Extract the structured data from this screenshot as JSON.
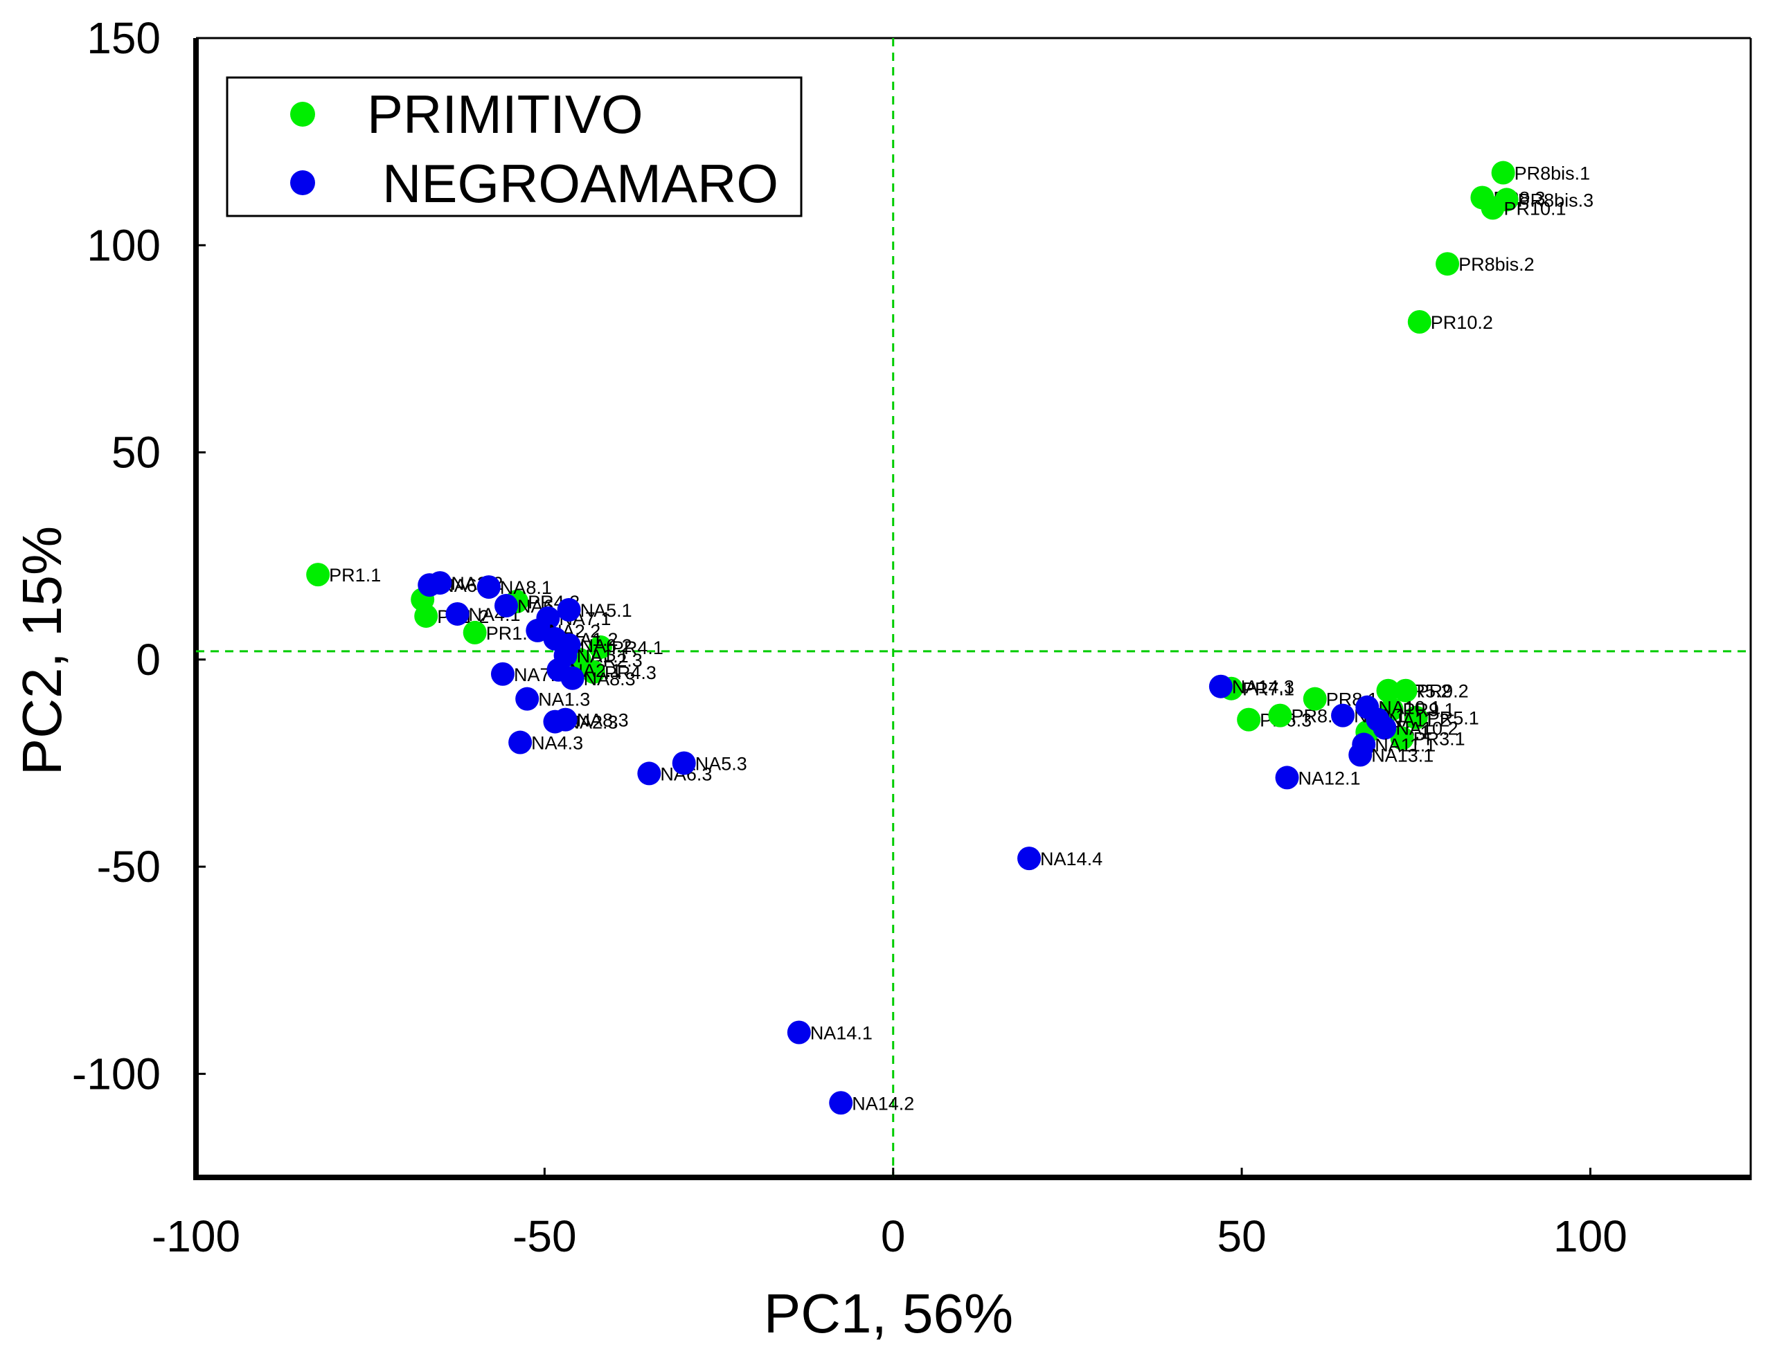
{
  "chart_data": {
    "type": "scatter",
    "title": "",
    "xlabel": "PC1, 56%",
    "ylabel": "PC2, 15%",
    "xlim": [
      -100,
      123
    ],
    "ylim": [
      -125,
      150
    ],
    "xticks": [
      -100,
      -50,
      0,
      50,
      100
    ],
    "yticks": [
      -100,
      -50,
      0,
      50,
      100,
      150
    ],
    "reference_lines": {
      "x": 0,
      "y": 2,
      "color": "#00cc00",
      "style": "dashed"
    },
    "grid": false,
    "legend_position": "top-left",
    "series": [
      {
        "name": "PRIMITIVO",
        "color": "#00ee00",
        "points": [
          {
            "x": -82.5,
            "y": 20.5,
            "label": "PR1.1"
          },
          {
            "x": -67.5,
            "y": 14.5,
            "label": ""
          },
          {
            "x": -67,
            "y": 10.5,
            "label": "PR1.2"
          },
          {
            "x": -60,
            "y": 6.5,
            "label": "PR1.3"
          },
          {
            "x": -54,
            "y": 14,
            "label": "PR4.2"
          },
          {
            "x": -45,
            "y": 0,
            "label": "PR2.3"
          },
          {
            "x": -43,
            "y": -3,
            "label": "PR4.3"
          },
          {
            "x": -42,
            "y": 3,
            "label": "PR4.1"
          },
          {
            "x": 87.5,
            "y": 117.5,
            "label": "PR8bis.1"
          },
          {
            "x": 84.5,
            "y": 111.5,
            "label": "PR8.3"
          },
          {
            "x": 88,
            "y": 111,
            "label": "PR8bis.3"
          },
          {
            "x": 86,
            "y": 109,
            "label": "PR10.1"
          },
          {
            "x": 79.5,
            "y": 95.5,
            "label": "PR8bis.2"
          },
          {
            "x": 75.5,
            "y": 81.5,
            "label": "PR10.2"
          },
          {
            "x": 48.5,
            "y": -7,
            "label": "PR7.1"
          },
          {
            "x": 51,
            "y": -14.5,
            "label": "PR6.3"
          },
          {
            "x": 55.5,
            "y": -13.5,
            "label": "PR8.2"
          },
          {
            "x": 60.5,
            "y": -9.5,
            "label": "PR8.1"
          },
          {
            "x": 71,
            "y": -7.5,
            "label": "PR5.2"
          },
          {
            "x": 73.5,
            "y": -7.5,
            "label": "PR9.2"
          },
          {
            "x": 68,
            "y": -17.5,
            "label": "PR6.1"
          },
          {
            "x": 73,
            "y": -19,
            "label": "PR3.1"
          },
          {
            "x": 75,
            "y": -14,
            "label": "PR5.1"
          },
          {
            "x": 71.5,
            "y": -12,
            "label": "PR9.1"
          }
        ]
      },
      {
        "name": "NEGROAMARO",
        "color": "#0000ee",
        "points": [
          {
            "x": -66.5,
            "y": 18,
            "label": "NA6.2"
          },
          {
            "x": -65,
            "y": 18.5,
            "label": "NA3.2"
          },
          {
            "x": -58,
            "y": 17.5,
            "label": "NA8.1"
          },
          {
            "x": -62.5,
            "y": 11,
            "label": "NA4.1"
          },
          {
            "x": -55.5,
            "y": 13,
            "label": "NA6.1"
          },
          {
            "x": -49.5,
            "y": 10,
            "label": "NA7.1"
          },
          {
            "x": -46.5,
            "y": 12,
            "label": "NA5.1"
          },
          {
            "x": -51,
            "y": 7,
            "label": "NA2.2"
          },
          {
            "x": -48.5,
            "y": 5,
            "label": "NA1.2"
          },
          {
            "x": -46.5,
            "y": 3.5,
            "label": "NA6.2"
          },
          {
            "x": -47,
            "y": 1,
            "label": "NA1.1"
          },
          {
            "x": -56,
            "y": -3.5,
            "label": "NA7.3"
          },
          {
            "x": -48,
            "y": -2.5,
            "label": "NA2.1"
          },
          {
            "x": -46,
            "y": -4.5,
            "label": "NA8.3"
          },
          {
            "x": -52.5,
            "y": -9.5,
            "label": "NA1.3"
          },
          {
            "x": -48.5,
            "y": -15,
            "label": "NA2.3"
          },
          {
            "x": -47,
            "y": -14.5,
            "label": "NA8.3"
          },
          {
            "x": -53.5,
            "y": -20,
            "label": "NA4.3"
          },
          {
            "x": -35,
            "y": -27.5,
            "label": "NA6.3"
          },
          {
            "x": -30,
            "y": -25,
            "label": "NA5.3"
          },
          {
            "x": 47,
            "y": -6.5,
            "label": "NA14.3"
          },
          {
            "x": 64.5,
            "y": -13.5,
            "label": "NA9.1"
          },
          {
            "x": 68,
            "y": -11.5,
            "label": "NA10.1"
          },
          {
            "x": 69.5,
            "y": -14.5,
            "label": "NA11.2"
          },
          {
            "x": 70.5,
            "y": -16.5,
            "label": "NA10.2"
          },
          {
            "x": 67.5,
            "y": -20.5,
            "label": "NA11.1"
          },
          {
            "x": 67,
            "y": -23,
            "label": "NA13.1"
          },
          {
            "x": 56.5,
            "y": -28.5,
            "label": "NA12.1"
          },
          {
            "x": 19.5,
            "y": -48,
            "label": "NA14.4"
          },
          {
            "x": -13.5,
            "y": -90,
            "label": "NA14.1"
          },
          {
            "x": -7.5,
            "y": -107,
            "label": "NA14.2"
          }
        ]
      }
    ]
  }
}
